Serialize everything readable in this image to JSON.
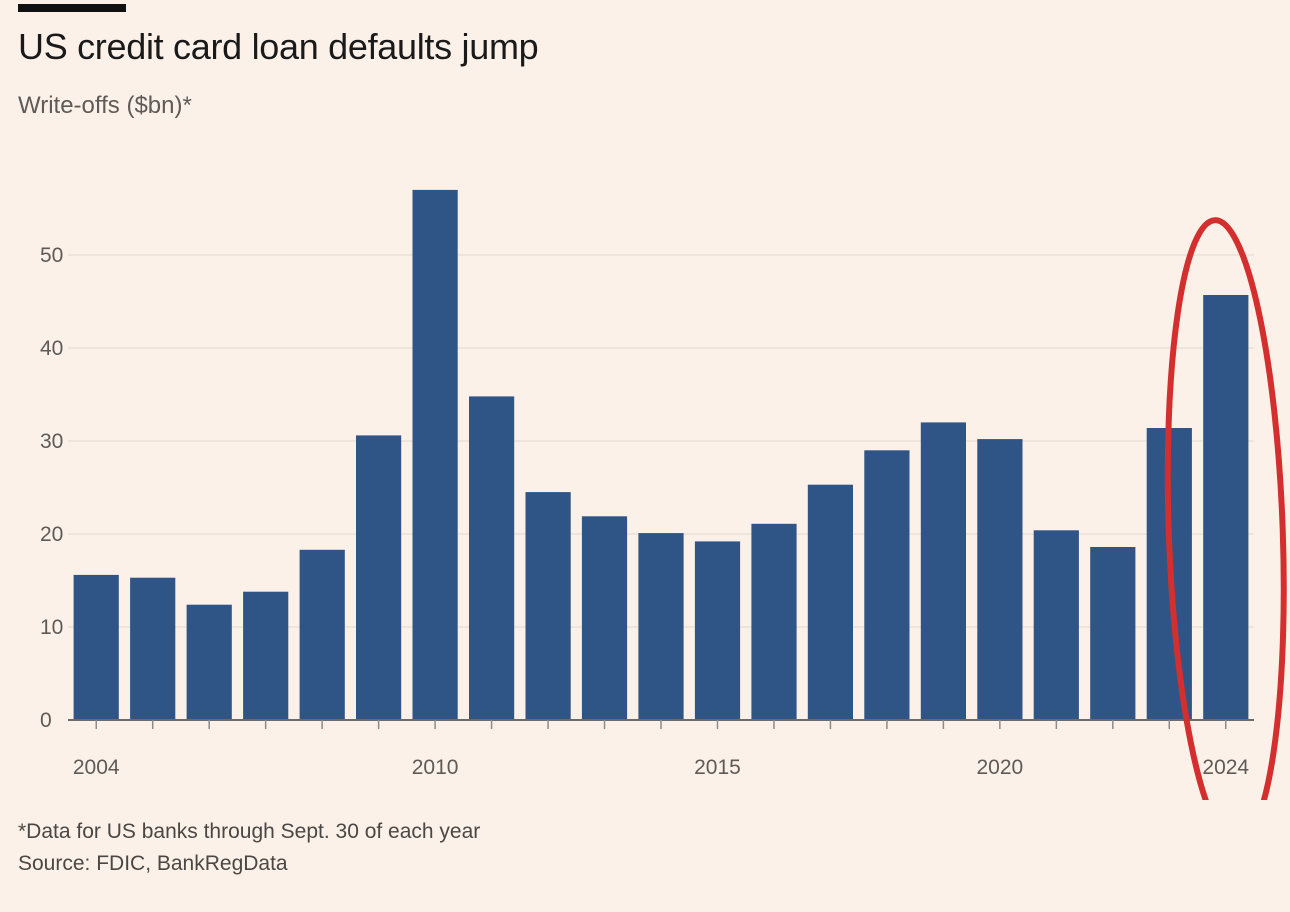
{
  "chart_data": {
    "type": "bar",
    "title": "US credit card loan defaults jump",
    "subtitle": "Write-offs ($bn)*",
    "xlabel": "",
    "ylabel": "",
    "categories": [
      "2004",
      "2005",
      "2006",
      "2007",
      "2008",
      "2009",
      "2010",
      "2011",
      "2012",
      "2013",
      "2014",
      "2015",
      "2016",
      "2017",
      "2018",
      "2019",
      "2020",
      "2021",
      "2022",
      "2023",
      "2024"
    ],
    "values": [
      15.6,
      15.3,
      12.4,
      13.8,
      18.3,
      30.6,
      57.0,
      34.8,
      24.5,
      21.9,
      20.1,
      19.2,
      21.1,
      25.3,
      29.0,
      32.0,
      30.2,
      20.4,
      18.6,
      31.4,
      45.7
    ],
    "ylim": [
      0,
      57
    ],
    "yticks": [
      0,
      10,
      20,
      30,
      40,
      50
    ],
    "xtick_labels": [
      "2004",
      "2010",
      "2015",
      "2020",
      "2024"
    ],
    "grid": true,
    "bar_color": "#2F5486",
    "annotation": {
      "shape": "ellipse",
      "color": "#D32F2F",
      "around": "2024"
    },
    "footnote": "*Data for US banks through Sept. 30 of each year",
    "source": "Source: FDIC, BankRegData"
  }
}
